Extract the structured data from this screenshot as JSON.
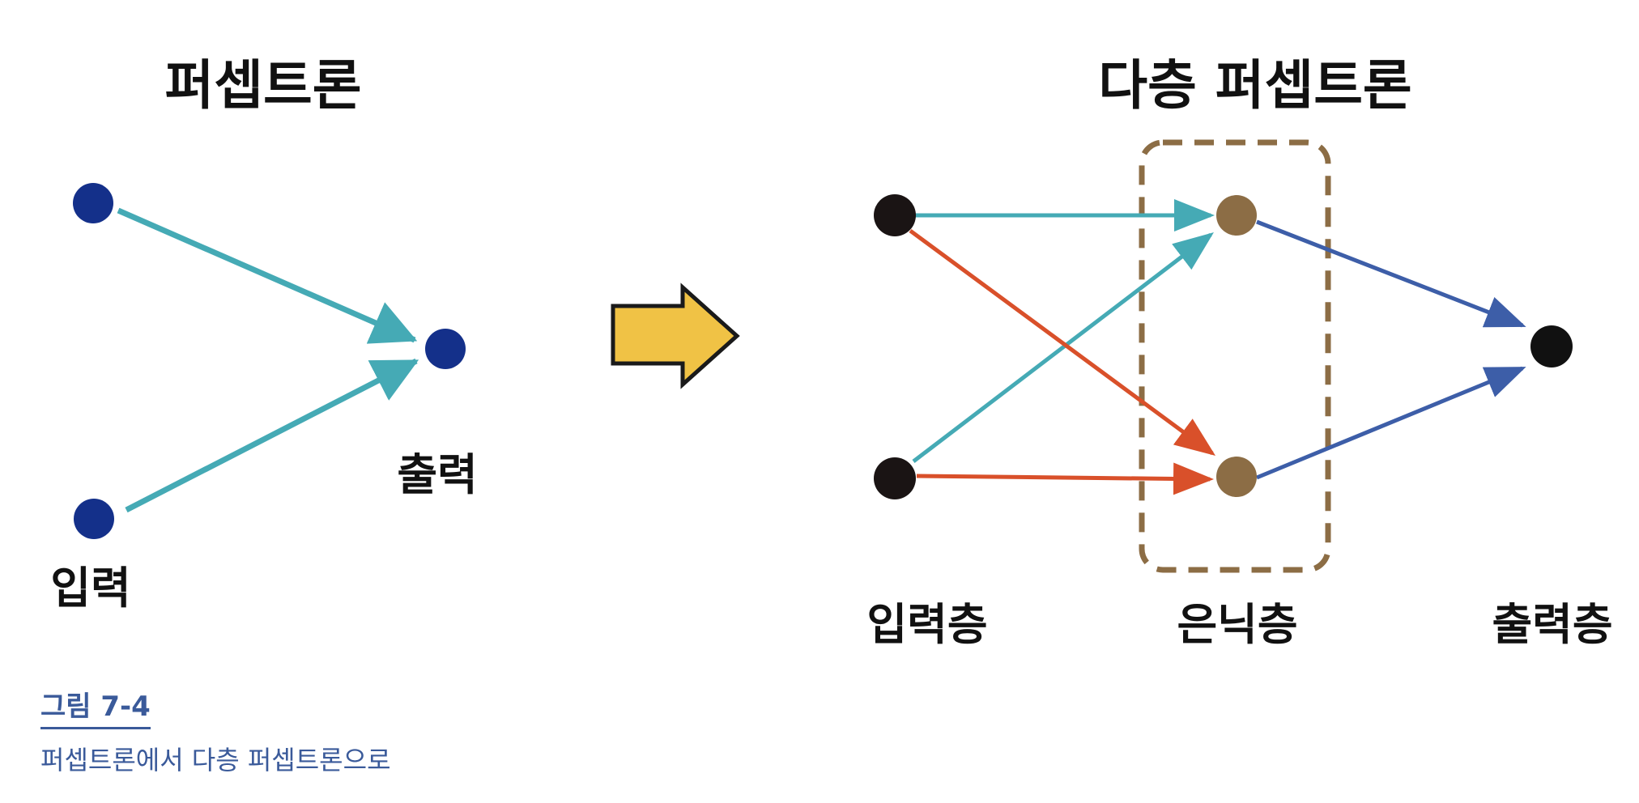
{
  "left_diagram": {
    "title": "퍼셉트론",
    "input_label": "입력",
    "output_label": "출력"
  },
  "right_diagram": {
    "title": "다층 퍼셉트론",
    "input_layer_label": "입력층",
    "hidden_layer_label": "은닉층",
    "output_layer_label": "출력층"
  },
  "colors": {
    "perceptron_node": "#14308a",
    "teal_edge": "#45aab5",
    "red_edge": "#d9502a",
    "blue_edge": "#3d5ea8",
    "input_node": "#1a1414",
    "hidden_node": "#8c6d45",
    "output_node": "#111111",
    "dashed_box": "#8c6d45",
    "arrow_fill": "#f0c245",
    "caption": "#3a5a9a"
  },
  "caption": {
    "figure_number": "그림 7-4",
    "text": "퍼셉트론에서 다층 퍼셉트론으로"
  }
}
